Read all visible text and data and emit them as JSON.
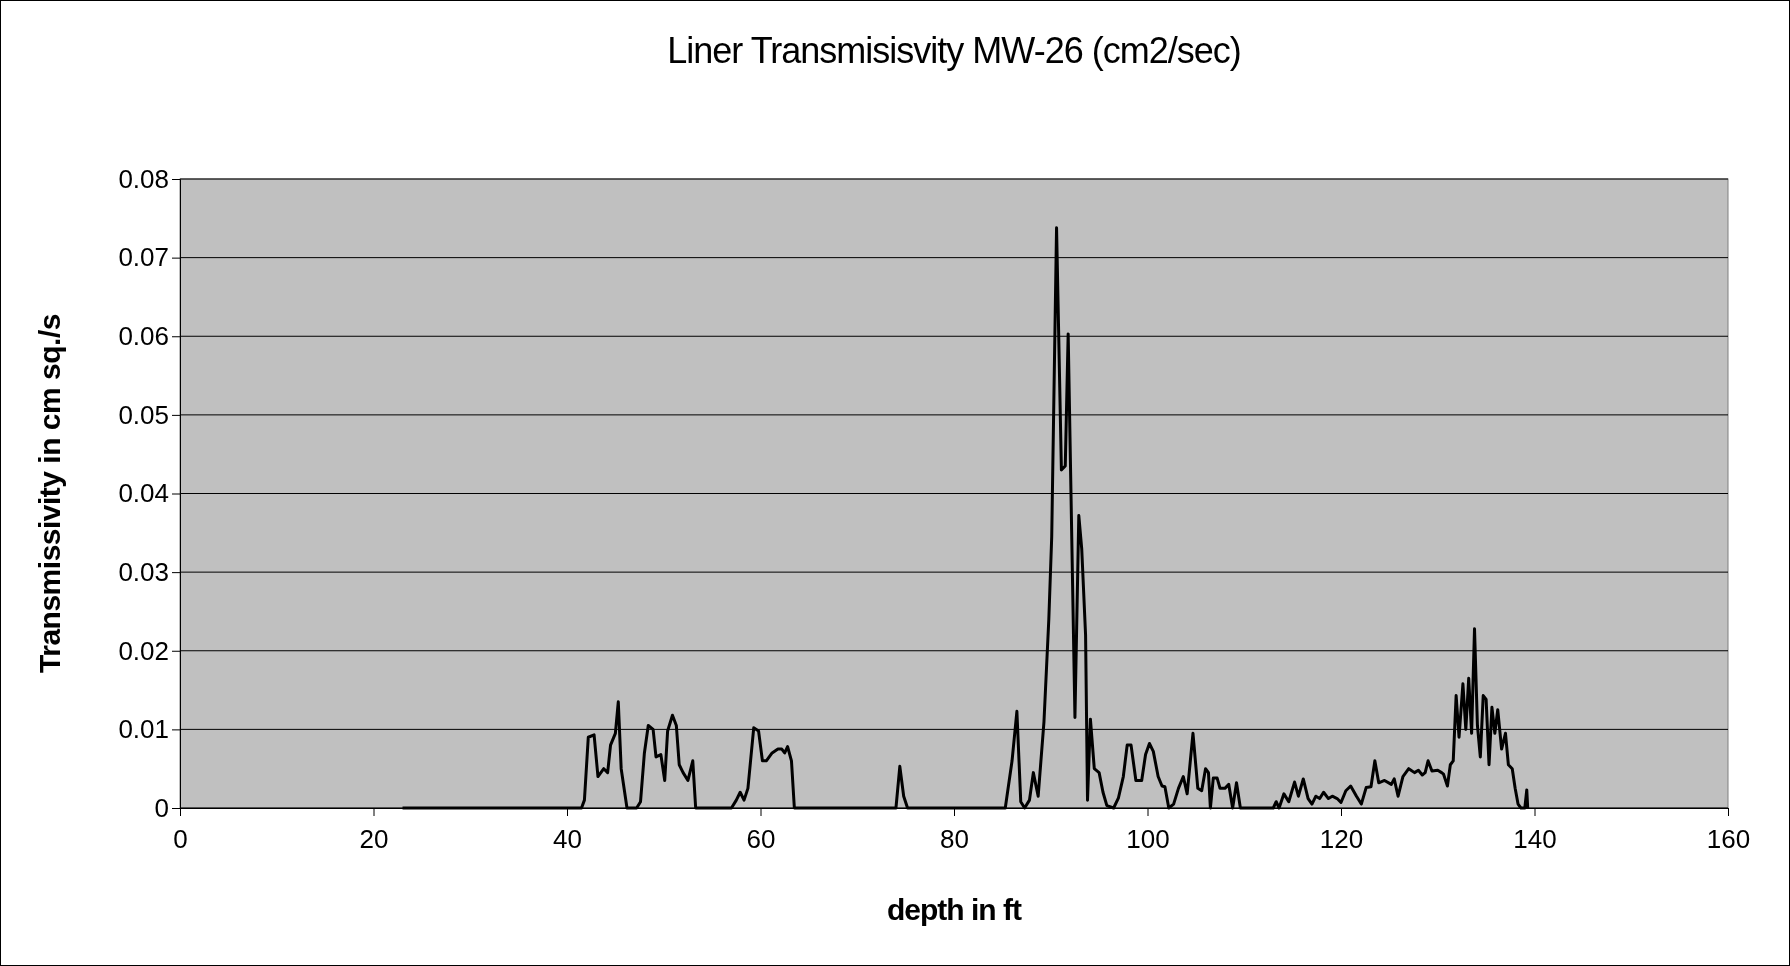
{
  "chart_data": {
    "type": "line",
    "title": "Liner Transmisisvity MW-26 (cm2/sec)",
    "xlabel": "depth in ft",
    "ylabel": "Transmissivity in cm sq./s",
    "xlim": [
      0,
      160
    ],
    "xticks": [
      0,
      20,
      40,
      60,
      80,
      100,
      120,
      140,
      160
    ],
    "ylim": [
      0,
      0.08
    ],
    "yticks": [
      0,
      0.01,
      0.02,
      0.03,
      0.04,
      0.05,
      0.06,
      0.07,
      0.08
    ],
    "grid": "y",
    "marker": "none",
    "line_style": "solid",
    "series": [
      {
        "color": "#000000",
        "x": [
          23,
          41.5,
          41.8,
          42.2,
          42.8,
          43.2,
          43.8,
          44.2,
          44.5,
          45,
          45.3,
          45.6,
          46.2,
          47.2,
          47.6,
          48,
          48.4,
          48.9,
          49.2,
          49.7,
          50.1,
          50.4,
          50.9,
          51.3,
          51.6,
          52,
          52.5,
          53,
          53.3,
          57,
          57.5,
          57.9,
          58.3,
          58.7,
          59.3,
          59.8,
          60.2,
          60.6,
          61.2,
          61.8,
          62.2,
          62.5,
          62.8,
          63.2,
          63.5,
          74,
          74.4,
          74.8,
          75.2,
          85.3,
          86,
          86.5,
          86.9,
          87.3,
          87.8,
          88.2,
          88.7,
          89.3,
          89.8,
          90.1,
          90.6,
          91.1,
          91.5,
          91.8,
          92.5,
          92.9,
          93.2,
          93.6,
          93.8,
          94.1,
          94.5,
          95,
          95.4,
          95.8,
          96.5,
          97,
          97.5,
          97.9,
          98.3,
          98.8,
          99.4,
          99.8,
          100.2,
          100.6,
          101.1,
          101.5,
          101.8,
          102.2,
          102.7,
          103.2,
          103.7,
          104.1,
          104.7,
          105.2,
          105.6,
          106,
          106.3,
          106.5,
          106.8,
          107.2,
          107.5,
          108,
          108.4,
          108.8,
          109.2,
          109.6,
          113,
          113.3,
          113.6,
          114.1,
          114.6,
          115.2,
          115.6,
          116.1,
          116.6,
          117,
          117.4,
          117.8,
          118.2,
          118.7,
          119.1,
          119.6,
          120,
          120.5,
          121,
          121.6,
          122.1,
          122.6,
          123.1,
          123.5,
          123.9,
          124.5,
          125.2,
          125.5,
          125.9,
          126.4,
          127,
          127.6,
          128,
          128.4,
          128.7,
          129,
          129.4,
          130,
          130.4,
          130.6,
          131,
          131.3,
          131.6,
          131.9,
          132.2,
          132.6,
          132.9,
          133.2,
          133.5,
          133.8,
          134.1,
          134.4,
          134.7,
          135,
          135.3,
          135.6,
          135.9,
          136.2,
          136.6,
          137,
          137.3,
          137.7,
          138,
          138.3,
          138.6,
          139,
          139.2,
          139.3
        ],
        "values": [
          0,
          0,
          0.001,
          0.009,
          0.0093,
          0.004,
          0.005,
          0.0045,
          0.008,
          0.0095,
          0.0135,
          0.005,
          0,
          0,
          0.0008,
          0.007,
          0.0105,
          0.01,
          0.0065,
          0.0068,
          0.0035,
          0.0098,
          0.0118,
          0.0105,
          0.0055,
          0.0045,
          0.0035,
          0.006,
          0,
          0,
          0.001,
          0.002,
          0.001,
          0.0025,
          0.0102,
          0.0098,
          0.006,
          0.006,
          0.007,
          0.0075,
          0.0075,
          0.007,
          0.0078,
          0.006,
          0,
          0,
          0.0053,
          0.0015,
          0,
          0,
          0.006,
          0.0123,
          0.0008,
          0,
          0.001,
          0.0045,
          0.0015,
          0.011,
          0.024,
          0.0345,
          0.0738,
          0.043,
          0.0435,
          0.0603,
          0.0115,
          0.0372,
          0.033,
          0.022,
          0.001,
          0.0113,
          0.005,
          0.0045,
          0.002,
          0.0003,
          0,
          0.0013,
          0.004,
          0.008,
          0.008,
          0.0035,
          0.0035,
          0.0068,
          0.0082,
          0.0072,
          0.004,
          0.0028,
          0.0027,
          0,
          0.0005,
          0.0025,
          0.004,
          0.0018,
          0.0095,
          0.0025,
          0.0022,
          0.005,
          0.0045,
          0,
          0.0038,
          0.0038,
          0.0025,
          0.0025,
          0.003,
          0,
          0.0032,
          0,
          0,
          0.0008,
          0,
          0.0018,
          0.0008,
          0.0033,
          0.0015,
          0.0037,
          0.0012,
          0.0005,
          0.0015,
          0.0012,
          0.002,
          0.0012,
          0.0015,
          0.0012,
          0.0007,
          0.0022,
          0.0028,
          0.0015,
          0.0005,
          0.0026,
          0.0027,
          0.006,
          0.0032,
          0.0035,
          0.003,
          0.0037,
          0.0015,
          0.004,
          0.005,
          0.0045,
          0.0048,
          0.0042,
          0.0045,
          0.006,
          0.0047,
          0.0048,
          0.0045,
          0.0043,
          0.0028,
          0.0055,
          0.006,
          0.0143,
          0.009,
          0.0158,
          0.01,
          0.0165,
          0.0095,
          0.0228,
          0.0105,
          0.0065,
          0.0143,
          0.0138,
          0.0055,
          0.0128,
          0.0095,
          0.0125,
          0.0075,
          0.0095,
          0.0055,
          0.005,
          0.0025,
          0.0005,
          0,
          0,
          0.0023,
          0
        ]
      }
    ]
  }
}
